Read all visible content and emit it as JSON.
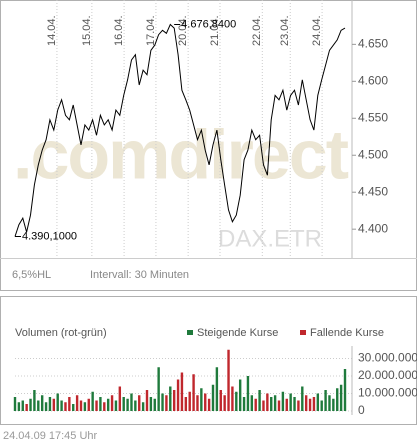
{
  "chart_data": [
    {
      "type": "line",
      "watermark": ".comdirect",
      "source_label": "DAX.ETR",
      "notes": [
        "6,5%HL",
        "Intervall: 30 Minuten"
      ],
      "annotations": [
        {
          "text": "4.676,8400",
          "x": 41,
          "y": 4676.84
        },
        {
          "text": "4.390,1000",
          "x": 0,
          "y": 4390.1
        }
      ],
      "xlim": [
        0,
        85
      ],
      "xticks": [
        {
          "value": 10.8,
          "label": "14.04."
        },
        {
          "value": 19.8,
          "label": "15.04."
        },
        {
          "value": 28.1,
          "label": "16.04."
        },
        {
          "value": 36.3,
          "label": "17.04."
        },
        {
          "value": 44.6,
          "label": "20.04."
        },
        {
          "value": 52.8,
          "label": "21.04."
        },
        {
          "value": 63.7,
          "label": "22.04."
        },
        {
          "value": 70.9,
          "label": "23.04."
        },
        {
          "value": 79.1,
          "label": "24.04."
        }
      ],
      "ylim": [
        4361,
        4710
      ],
      "yticks": [
        {
          "value": 4400,
          "label": "4.400"
        },
        {
          "value": 4450,
          "label": "4.450"
        },
        {
          "value": 4500,
          "label": "4.500"
        },
        {
          "value": 4550,
          "label": "4.550"
        },
        {
          "value": 4600,
          "label": "4.600"
        },
        {
          "value": 4650,
          "label": "4.650"
        }
      ],
      "grid": "x",
      "color": "#000000",
      "values": [
        4390.1,
        4406,
        4415,
        4396,
        4419,
        4460,
        4487,
        4507,
        4521,
        4548,
        4534,
        4561,
        4575,
        4554,
        4548,
        4568,
        4541,
        4514,
        4541,
        4534,
        4548,
        4527,
        4554,
        4541,
        4548,
        4534,
        4561,
        4554,
        4581,
        4602,
        4629,
        4636,
        4595,
        4615,
        4609,
        4642,
        4649,
        4663,
        4669,
        4665,
        4676.84,
        4672,
        4636,
        4588,
        4575,
        4561,
        4541,
        4521,
        4534,
        4507,
        4487,
        4514,
        4534,
        4494,
        4460,
        4426,
        4410,
        4419,
        4446,
        4494,
        4507,
        4534,
        4521,
        4527,
        4487,
        4473,
        4548,
        4581,
        4575,
        4588,
        4561,
        4581,
        4588,
        4568,
        4602,
        4575,
        4548,
        4534,
        4581,
        4602,
        4622,
        4642,
        4649,
        4656,
        4669,
        4672
      ]
    },
    {
      "type": "bar",
      "title": "Volumen (rot-grün)",
      "xlim": [
        0,
        85
      ],
      "ylim": [
        0,
        36000000
      ],
      "yticks": [
        0,
        {
          "value": 10000000,
          "label": "10.000.000"
        },
        {
          "value": 20000000,
          "label": "20.000.000"
        },
        {
          "value": 30000000,
          "label": "30.000.000"
        }
      ],
      "grid": "y",
      "series": [
        {
          "name": "Steigende Kurse",
          "color": "#1f7a3c",
          "values": [
            8000000.0,
            5000000.0,
            6000000.0,
            null,
            7000000.0,
            12000000.0,
            6000000.0,
            9000000.0,
            5000000.0,
            8000000.0,
            null,
            10000000.0,
            6000000.0,
            null,
            null,
            4000000.0,
            null,
            null,
            5000000.0,
            null,
            11000000.0,
            null,
            8000000.0,
            null,
            7000000.0,
            null,
            6000000.0,
            null,
            8000000.0,
            7000000.0,
            10000000.0,
            6000000.0,
            null,
            5000000.0,
            null,
            8000000.0,
            7000000.0,
            25000000.0,
            10000000.0,
            null,
            14000000.0,
            null,
            null,
            null,
            null,
            null,
            null,
            null,
            13000000.0,
            null,
            null,
            15000000.0,
            25000000.0,
            null,
            null,
            null,
            null,
            11000000.0,
            18000000.0,
            8000000.0,
            20000000.0,
            9000000.0,
            null,
            12000000.0,
            null,
            null,
            8000000.0,
            9000000.0,
            null,
            11000000.0,
            null,
            10000000.0,
            8000000.0,
            null,
            14000000.0,
            null,
            null,
            null,
            10000000.0,
            6000000.0,
            12000000.0,
            9000000.0,
            7000000.0,
            13000000.0,
            15000000.0,
            24000000.0
          ]
        },
        {
          "name": "Fallende Kurse",
          "color": "#c0272d",
          "values": [
            null,
            null,
            null,
            4000000.0,
            null,
            null,
            null,
            null,
            null,
            null,
            7000000.0,
            null,
            null,
            5000000.0,
            8000000.0,
            null,
            9000000.0,
            6000000.0,
            null,
            7000000.0,
            null,
            6000000.0,
            null,
            5000000.0,
            null,
            9000000.0,
            null,
            14000000.0,
            null,
            null,
            null,
            null,
            9000000.0,
            null,
            12000000.0,
            null,
            null,
            null,
            null,
            9000000.0,
            null,
            12000000.0,
            18000000.0,
            22000000.0,
            8000000.0,
            11000000.0,
            21000000.0,
            9000000.0,
            null,
            10000000.0,
            7000000.0,
            null,
            null,
            12000000.0,
            9000000.0,
            35000000.0,
            14000000.0,
            null,
            null,
            null,
            null,
            null,
            7000000.0,
            null,
            6000000.0,
            10000000.0,
            null,
            null,
            6000000.0,
            null,
            7000000.0,
            null,
            null,
            6000000.0,
            null,
            9000000.0,
            7000000.0,
            8000000.0,
            null,
            null,
            null,
            null,
            null,
            null,
            null,
            null
          ]
        }
      ]
    }
  ],
  "timestamp": "24.04.09   17:45 Uhr"
}
